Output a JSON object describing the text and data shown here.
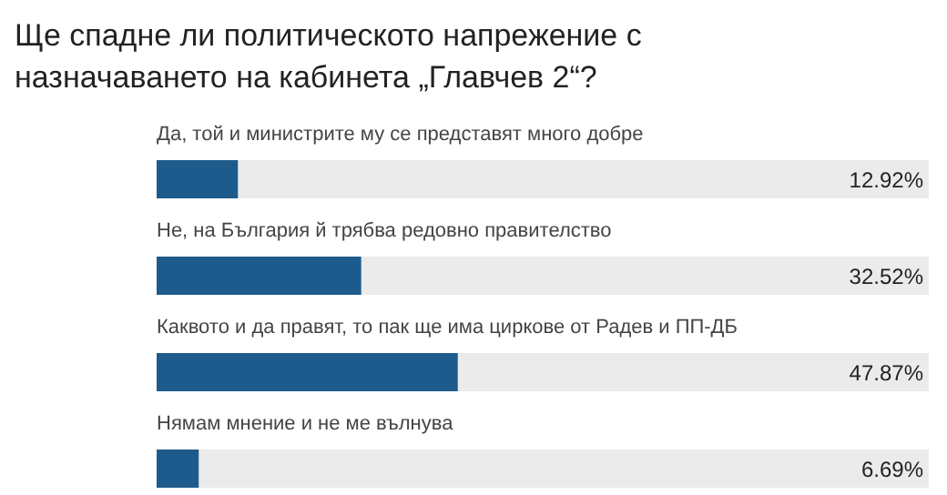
{
  "chart_data": {
    "type": "bar",
    "orientation": "horizontal",
    "title": "Ще спадне ли политическото напрежение с назначаването на кабинета „Главчев 2“?",
    "categories": [
      "Да, той и министрите му се представят много добре",
      "Не, на България й трябва редовно правителство",
      "Каквото и да правят, то пак ще има циркове от Радев и ПП-ДБ",
      "Нямам мнение и не ме вълнува"
    ],
    "values": [
      12.92,
      32.52,
      47.87,
      6.69
    ],
    "value_labels": [
      "12.92%",
      "32.52%",
      "47.87%",
      "6.69%"
    ],
    "color": "#1d5b8c"
  }
}
